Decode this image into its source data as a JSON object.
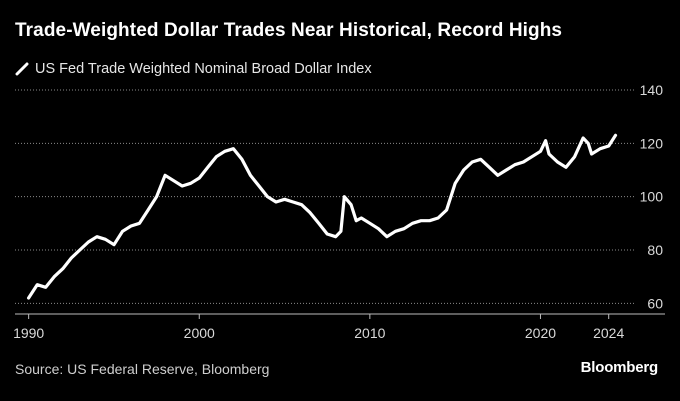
{
  "chart_data": {
    "type": "line",
    "title": "Trade-Weighted Dollar Trades Near Historical, Record Highs",
    "legend_placement": "top-left",
    "series": [
      {
        "name": "US Fed Trade Weighted Nominal Broad Dollar Index",
        "color": "#ffffff",
        "x": [
          1990.0,
          1990.5,
          1991.0,
          1991.5,
          1992.0,
          1992.5,
          1993.0,
          1993.5,
          1994.0,
          1994.5,
          1995.0,
          1995.5,
          1996.0,
          1996.5,
          1997.0,
          1997.5,
          1998.0,
          1998.5,
          1999.0,
          1999.5,
          2000.0,
          2000.5,
          2001.0,
          2001.5,
          2002.0,
          2002.5,
          2003.0,
          2003.5,
          2004.0,
          2004.5,
          2005.0,
          2005.5,
          2006.0,
          2006.5,
          2007.0,
          2007.5,
          2008.0,
          2008.3,
          2008.5,
          2008.9,
          2009.2,
          2009.5,
          2010.0,
          2010.5,
          2011.0,
          2011.5,
          2012.0,
          2012.5,
          2013.0,
          2013.5,
          2014.0,
          2014.5,
          2015.0,
          2015.5,
          2016.0,
          2016.5,
          2017.0,
          2017.5,
          2018.0,
          2018.5,
          2019.0,
          2019.5,
          2020.0,
          2020.3,
          2020.5,
          2021.0,
          2021.5,
          2022.0,
          2022.5,
          2022.8,
          2023.0,
          2023.5,
          2024.0,
          2024.4
        ],
        "values": [
          62,
          67,
          66,
          70,
          73,
          77,
          80,
          83,
          85,
          84,
          82,
          87,
          89,
          90,
          95,
          100,
          108,
          106,
          104,
          105,
          107,
          111,
          115,
          117,
          118,
          114,
          108,
          104,
          100,
          98,
          99,
          98,
          97,
          94,
          90,
          86,
          85,
          87,
          100,
          97,
          91,
          92,
          90,
          88,
          85,
          87,
          88,
          90,
          91,
          91,
          92,
          95,
          105,
          110,
          113,
          114,
          111,
          108,
          110,
          112,
          113,
          115,
          117,
          121,
          116,
          113,
          111,
          115,
          122,
          120,
          116,
          118,
          119,
          123
        ]
      }
    ],
    "x_ticks": [
      1990,
      2000,
      2010,
      2020,
      2024
    ],
    "y_ticks": [
      60,
      80,
      100,
      120,
      140
    ],
    "xlim": [
      1989.2,
      2027.3
    ],
    "ylim": [
      56,
      140
    ],
    "grid": "horizontal dotted",
    "y_axis_side": "right"
  },
  "source": "Source: US Federal Reserve, Bloomberg",
  "brand": "Bloomberg"
}
